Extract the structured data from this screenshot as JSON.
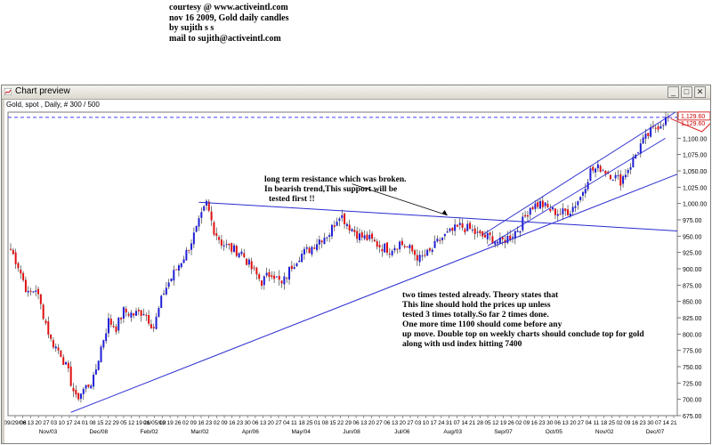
{
  "header": {
    "line1": "courtesy @ www.activeintl.com",
    "line2": "nov 16 2009, Gold daily candles",
    "line3": "by sujith s s",
    "line4": "mail to sujith@activeintl.com"
  },
  "window": {
    "title": "Chart preview",
    "minimize_label": "_",
    "maximize_label": "□",
    "close_label": "✕",
    "icon": "chart-icon"
  },
  "chart_data": {
    "type": "candlestick",
    "subtitle": "Gold, spot , Daily, # 300 / 500",
    "ylim": [
      675,
      1140
    ],
    "ytick_values": [
      675,
      700,
      725,
      750,
      775,
      800,
      825,
      850,
      875,
      900,
      925,
      950,
      975,
      1000,
      1025,
      1050,
      1075,
      1100
    ],
    "ytick_labels": [
      "675.00",
      "700.00",
      "725.00",
      "750.00",
      "775.00",
      "800.00",
      "825.00",
      "850.00",
      "875.00",
      "900.00",
      "925.00",
      "950.00",
      "975.00",
      "1,000.00",
      "1,025.00",
      "1,050.00",
      "1,075.00",
      "1,100.00"
    ],
    "price_label": "1,129.60",
    "price_label2": "1,129.60",
    "date_ticks": [
      "09/29/08",
      "06",
      "13",
      "20",
      "27",
      "03",
      "10",
      "17",
      "24",
      "01",
      "08",
      "15",
      "22",
      "29",
      "05",
      "12",
      "19",
      "26",
      "01/05/09",
      "12",
      "19",
      "26",
      "02",
      "09",
      "16",
      "23",
      "02",
      "09",
      "16",
      "23",
      "30",
      "06",
      "13",
      "20",
      "27",
      "04",
      "11",
      "18",
      "25",
      "01",
      "08",
      "15",
      "22",
      "29",
      "06",
      "13",
      "20",
      "27",
      "06",
      "13",
      "20",
      "27",
      "03",
      "10",
      "17",
      "24",
      "31",
      "07",
      "14",
      "21",
      "28",
      "05",
      "12",
      "19",
      "26",
      "02",
      "09",
      "16",
      "23",
      "30",
      "06",
      "13",
      "20",
      "27",
      "04",
      "11",
      "18",
      "25",
      "02",
      "09",
      "16",
      "23",
      "30",
      "07",
      "14",
      "21"
    ],
    "month_ticks": [
      "Nov/03",
      "Dec/08",
      "Feb/02",
      "Mar/02",
      "Apr/06",
      "May/04",
      "Jun/08",
      "Jul/06",
      "Aug/03",
      "Sep/07",
      "Oct/05",
      "Nov/02",
      "Dec/07"
    ],
    "path": [
      [
        0,
        930
      ],
      [
        3,
        905
      ],
      [
        7,
        860
      ],
      [
        10,
        870
      ],
      [
        13,
        830
      ],
      [
        16,
        790
      ],
      [
        20,
        770
      ],
      [
        23,
        740
      ],
      [
        26,
        700
      ],
      [
        29,
        715
      ],
      [
        33,
        730
      ],
      [
        36,
        780
      ],
      [
        39,
        820
      ],
      [
        42,
        810
      ],
      [
        45,
        835
      ],
      [
        49,
        830
      ],
      [
        53,
        835
      ],
      [
        57,
        810
      ],
      [
        61,
        865
      ],
      [
        66,
        900
      ],
      [
        70,
        925
      ],
      [
        74,
        960
      ],
      [
        78,
        1000
      ],
      [
        81,
        960
      ],
      [
        84,
        940
      ],
      [
        88,
        930
      ],
      [
        92,
        925
      ],
      [
        96,
        900
      ],
      [
        100,
        880
      ],
      [
        104,
        895
      ],
      [
        108,
        875
      ],
      [
        112,
        905
      ],
      [
        115,
        920
      ],
      [
        119,
        930
      ],
      [
        123,
        945
      ],
      [
        127,
        955
      ],
      [
        131,
        985
      ],
      [
        135,
        965
      ],
      [
        139,
        950
      ],
      [
        143,
        945
      ],
      [
        147,
        935
      ],
      [
        151,
        930
      ],
      [
        155,
        940
      ],
      [
        159,
        930
      ],
      [
        163,
        915
      ],
      [
        167,
        925
      ],
      [
        171,
        945
      ],
      [
        175,
        955
      ],
      [
        179,
        965
      ],
      [
        183,
        960
      ],
      [
        187,
        950
      ],
      [
        191,
        948
      ],
      [
        195,
        940
      ],
      [
        199,
        950
      ],
      [
        203,
        965
      ],
      [
        207,
        995
      ],
      [
        211,
        1000
      ],
      [
        215,
        990
      ],
      [
        219,
        985
      ],
      [
        223,
        990
      ],
      [
        227,
        1010
      ],
      [
        231,
        1050
      ],
      [
        235,
        1055
      ],
      [
        239,
        1045
      ],
      [
        243,
        1035
      ],
      [
        247,
        1060
      ],
      [
        251,
        1090
      ],
      [
        255,
        1110
      ],
      [
        258,
        1120
      ],
      [
        262,
        1132
      ]
    ],
    "levels": {
      "resistance_dashed": 1132,
      "falling_trendline": {
        "start": 1002,
        "end": 958
      },
      "lower_rising_trendline": {
        "start": 680,
        "end": 1045
      },
      "channel_lower": {
        "start": 935,
        "end": 1100
      },
      "channel_upper": {
        "start": 952,
        "end": 1140
      },
      "projection": [
        1130,
        1110,
        1130,
        1050
      ]
    }
  },
  "annotations": {
    "resistance_note": [
      "long term resistance which was broken.",
      "In bearish trend,This support will be",
      "tested first !!"
    ],
    "support_note": [
      "two times tested already. Theory states that",
      "This line should hold the prices up unless",
      "tested 3 times totally.So far 2 times done.",
      "One more time 1100 should come before any",
      "up move. Double top on weekly charts should conclude top for gold",
      "along with usd index hitting 7400"
    ]
  }
}
